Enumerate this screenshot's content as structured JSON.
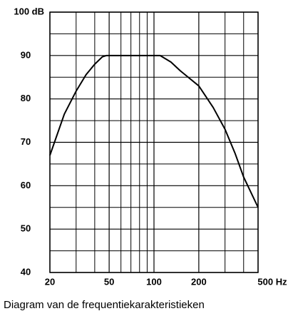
{
  "chart_data": {
    "type": "line",
    "caption": "Diagram van de frequentiekarakteristieken",
    "xscale": "log",
    "xlim": [
      20,
      500
    ],
    "ylim": [
      40,
      100
    ],
    "xticks": [
      20,
      50,
      100,
      200,
      {
        "value": 500,
        "label": "500 Hz"
      }
    ],
    "yticks": [
      40,
      50,
      60,
      70,
      80,
      90,
      {
        "value": 100,
        "label": "100 dB"
      }
    ],
    "xgrid": [
      30,
      40,
      60,
      70,
      80,
      90,
      300,
      400
    ],
    "ygrid": [
      45,
      55,
      65,
      75,
      85,
      95
    ],
    "grid": true,
    "x": [
      20,
      25,
      30,
      35,
      40,
      45,
      48,
      100,
      110,
      130,
      150,
      200,
      250,
      300,
      350,
      400,
      500
    ],
    "series": [
      {
        "color": "#000000",
        "values": [
          67,
          76.5,
          81.8,
          85.6,
          88,
          89.7,
          90,
          90,
          90,
          88.5,
          86.5,
          83,
          78,
          73,
          67.5,
          62,
          55
        ]
      }
    ]
  }
}
